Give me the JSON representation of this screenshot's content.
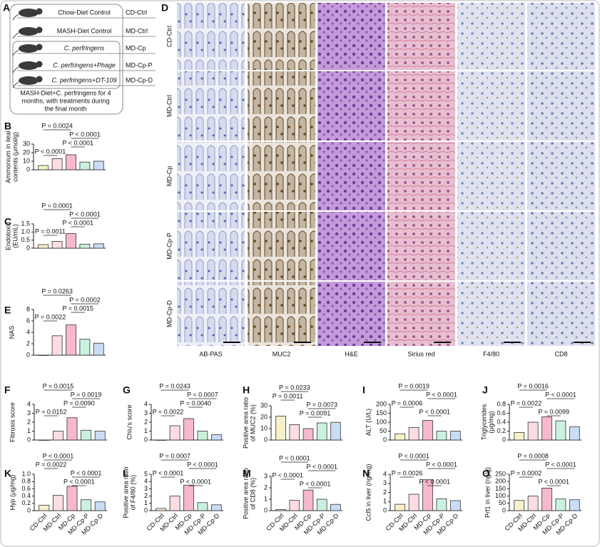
{
  "panel_a": {
    "letter": "A",
    "groups": [
      {
        "label": "Chow-Diet Control",
        "code": "CD-Ctrl"
      },
      {
        "label": "MASH-Diet Control",
        "code": "MD-Ctrl"
      },
      {
        "label": "C. perfringens",
        "code": "MD-Cp"
      },
      {
        "label": "C. perfringens+Phage",
        "code": "MD-Cp-P"
      },
      {
        "label": "C. perfringens+DT-109",
        "code": "MD-Cp-D"
      }
    ],
    "note": [
      "MASH-Diet+C. perfringens for 4",
      "months, with treatments during",
      "the final month"
    ]
  },
  "panel_d": {
    "letter": "D",
    "rows": [
      "CD-Ctrl",
      "MD-Ctrl",
      "MD-Cp",
      "MD-Cp-P",
      "MD-Cp-D"
    ],
    "columns": [
      "AB-PAS",
      "MUC2",
      "H&E",
      "Sirius red",
      "F4/80",
      "CD8"
    ]
  },
  "chart_data": [
    {
      "type": "bar",
      "panel": "B",
      "ylabel": [
        "Ammonium in ileal",
        "contents (μmol/g)"
      ],
      "values": [
        5,
        13,
        17.5,
        9,
        10
      ],
      "colors": [
        "#f6f1c8",
        "#fbdde2",
        "#f5b8cc",
        "#c9f1de",
        "#c9ddf6"
      ],
      "ylim": [
        0,
        30
      ],
      "yticks": [
        0,
        10,
        20,
        30
      ],
      "annotations": [
        "P = 0.0024",
        "P < 0.0001",
        "P < 0.0001",
        "P < 0.0001"
      ]
    },
    {
      "type": "bar",
      "panel": "C",
      "ylabel": [
        "Endotoxin",
        "(EU/mL)"
      ],
      "values": [
        0.22,
        0.42,
        0.9,
        0.25,
        0.27
      ],
      "colors": [
        "#f6f1c8",
        "#fbdde2",
        "#f5b8cc",
        "#c9f1de",
        "#c9ddf6"
      ],
      "ylim": [
        0,
        1.5
      ],
      "yticks": [
        0,
        0.5,
        {
          "value": 1,
          "label": "1.0"
        },
        1.5
      ],
      "annotations": [
        "P = 0.0001",
        "P < 0.0001",
        "P < 0.0001",
        "P = 0.0011"
      ]
    },
    {
      "type": "bar",
      "panel": "E",
      "ylabel": "NAS",
      "values": [
        0,
        3.4,
        5.3,
        2.8,
        2.1
      ],
      "colors": [
        "#f6f1c8",
        "#fbdde2",
        "#f5b8cc",
        "#c9f1de",
        "#c9ddf6"
      ],
      "ylim": [
        0,
        8
      ],
      "yticks": [
        0,
        2,
        4,
        6,
        8
      ],
      "annotations": [
        "P = 0.0263",
        "P = 0.0002",
        "P = 0.0015",
        "P = 0.0022"
      ]
    },
    {
      "type": "bar",
      "panel": "F",
      "ylabel": "Fibrosis score",
      "values": [
        0,
        1,
        2.5,
        1.1,
        1
      ],
      "colors": [
        "#f6f1c8",
        "#fbdde2",
        "#f5b8cc",
        "#c9f1de",
        "#c9ddf6"
      ],
      "ylim": [
        0,
        4
      ],
      "yticks": [
        0,
        1,
        2,
        3,
        4
      ],
      "annotations": [
        "P = 0.0015",
        "P = 0.0019",
        "P = 0.0090",
        "P = 0.0152"
      ]
    },
    {
      "type": "bar",
      "panel": "G",
      "ylabel": "Chiu's score",
      "values": [
        0,
        1.6,
        2.4,
        1,
        0.6
      ],
      "colors": [
        "#f6f1c8",
        "#fbdde2",
        "#f5b8cc",
        "#c9f1de",
        "#c9ddf6"
      ],
      "ylim": [
        0,
        4
      ],
      "yticks": [
        0,
        1,
        2,
        3,
        4
      ],
      "annotations": [
        "P = 0.0243",
        "P = 0.0007",
        "P = 0.0040",
        "P = 0.0022"
      ]
    },
    {
      "type": "bar",
      "panel": "H",
      "ylabel": [
        "Positive area ratio",
        "of MUC2 (%)"
      ],
      "values": [
        21,
        13.5,
        10,
        15,
        15.5
      ],
      "colors": [
        "#f6f1c8",
        "#fbdde2",
        "#f5b8cc",
        "#c9f1de",
        "#c9ddf6"
      ],
      "ylim": [
        0,
        30
      ],
      "yticks": [
        0,
        10,
        20,
        30
      ],
      "annotations": [
        "P = 0.0233",
        "P = 0.0011",
        "P = 0.0073",
        "P = 0.0091"
      ]
    },
    {
      "type": "bar",
      "panel": "I",
      "ylabel": "ALT (U/L)",
      "values": [
        35,
        70,
        110,
        50,
        50
      ],
      "colors": [
        "#f6f1c8",
        "#fbdde2",
        "#f5b8cc",
        "#c9f1de",
        "#c9ddf6"
      ],
      "ylim": [
        0,
        200
      ],
      "yticks": [
        0,
        50,
        100,
        150,
        200
      ],
      "annotations": [
        "P = 0.0019",
        "P < 0.0001",
        "P = 0.0006",
        "P < 0.0001"
      ]
    },
    {
      "type": "bar",
      "panel": "J",
      "ylabel": [
        "Triglycerides",
        "(μg/mg)"
      ],
      "values": [
        0.17,
        0.4,
        0.52,
        0.43,
        0.3
      ],
      "colors": [
        "#f6f1c8",
        "#fbdde2",
        "#f5b8cc",
        "#c9f1de",
        "#c9ddf6"
      ],
      "ylim": [
        0,
        0.8
      ],
      "yticks": [
        0,
        0.2,
        0.4,
        0.6,
        0.8
      ],
      "annotations": [
        "P = 0.0016",
        "P < 0.0001",
        "P = 0.0022",
        "P = 0.0099"
      ]
    },
    {
      "type": "bar",
      "panel": "K",
      "ylabel": "Hyp (μg/mg)",
      "categories": [
        "CD-Ctrl",
        "MD-Ctrl",
        "MD-Cp",
        "MD-Cp-P",
        "MD-Cp-D"
      ],
      "values": [
        0.15,
        0.42,
        0.67,
        0.3,
        0.24
      ],
      "colors": [
        "#f6f1c8",
        "#fbdde2",
        "#f5b8cc",
        "#c9f1de",
        "#c9ddf6"
      ],
      "ylim": [
        0,
        1
      ],
      "yticks": [
        0,
        0.2,
        0.4,
        0.6,
        0.8,
        {
          "value": 1,
          "label": "1.0"
        }
      ],
      "annotations": [
        "P < 0.0001",
        "P = 0.0022",
        "P < 0.0001",
        "P < 0.0001"
      ]
    },
    {
      "type": "bar",
      "panel": "L",
      "ylabel": [
        "Positive area ratio",
        "of F4/80 (%)"
      ],
      "categories": [
        "CD-Ctrl",
        "MD-Ctrl",
        "MD-Cp",
        "MD-Cp-P",
        "MD-Cp-D"
      ],
      "values": [
        0.3,
        2,
        3.5,
        1.1,
        0.8
      ],
      "colors": [
        "#f6f1c8",
        "#fbdde2",
        "#f5b8cc",
        "#c9f1de",
        "#c9ddf6"
      ],
      "ylim": [
        0,
        5
      ],
      "yticks": [
        0,
        1,
        2,
        3,
        4,
        5
      ],
      "annotations": [
        "P = 0.0007",
        "P < 0.0001",
        "P < 0.0001",
        "P < 0.0001"
      ]
    },
    {
      "type": "bar",
      "panel": "M",
      "ylabel": [
        "Positive area ratio",
        "of CD8 (%)"
      ],
      "categories": [
        "CD-Ctrl",
        "MD-Ctrl",
        "MD-Cp",
        "MD-Cp-P",
        "MD-Cp-D"
      ],
      "values": [
        0.1,
        0.9,
        1.8,
        1,
        0.55
      ],
      "colors": [
        "#f6f1c8",
        "#fbdde2",
        "#f5b8cc",
        "#c9f1de",
        "#c9ddf6"
      ],
      "ylim": [
        0,
        3
      ],
      "yticks": [
        0,
        1,
        2,
        3
      ],
      "annotations": [
        "P < 0.0001",
        "P < 0.0001",
        "P < 0.0001",
        "P < 0.0001"
      ]
    },
    {
      "type": "bar",
      "panel": "N",
      "ylabel": "Ccl5 in liver (ng/mg)",
      "categories": [
        "CD-Ctrl",
        "MD-Ctrl",
        "MD-Cp",
        "MD-Cp-P",
        "MD-Cp-D"
      ],
      "values": [
        0.7,
        1.8,
        3.4,
        1.3,
        1.1
      ],
      "colors": [
        "#f6f1c8",
        "#fbdde2",
        "#f5b8cc",
        "#c9f1de",
        "#c9ddf6"
      ],
      "ylim": [
        0,
        4
      ],
      "yticks": [
        0,
        1,
        2,
        3,
        4
      ],
      "annotations": [
        "P < 0.0001",
        "P < 0.0001",
        "P = 0.0026",
        "P < 0.0001"
      ]
    },
    {
      "type": "bar",
      "panel": "O",
      "ylabel": "Prf1 in liver (ng/g)",
      "categories": [
        "CD-Ctrl",
        "MD-Ctrl",
        "MD-Cp",
        "MD-Cp-P",
        "MD-Cp-D"
      ],
      "values": [
        70,
        100,
        155,
        80,
        75
      ],
      "colors": [
        "#f6f1c8",
        "#fbdde2",
        "#f5b8cc",
        "#c9f1de",
        "#c9ddf6"
      ],
      "ylim": [
        0,
        250
      ],
      "yticks": [
        0,
        50,
        100,
        150,
        200,
        250
      ],
      "annotations": [
        "P = 0.0008",
        "P < 0.0001",
        "P = 0.0002",
        "P < 0.0001"
      ]
    }
  ]
}
